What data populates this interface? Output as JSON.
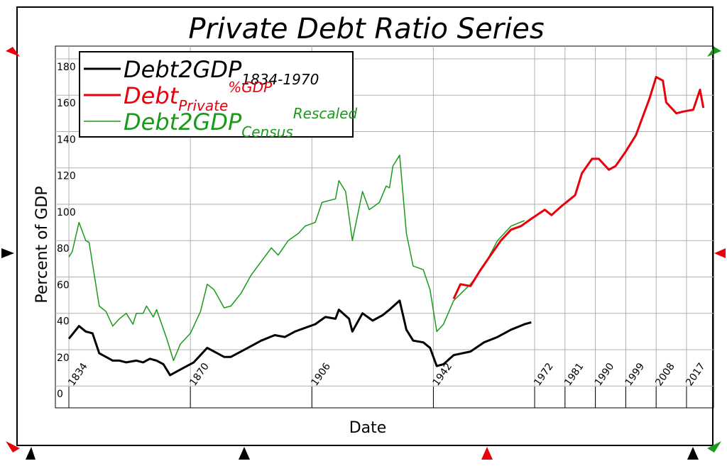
{
  "chart_data": {
    "type": "line",
    "title": "Private Debt Ratio Series",
    "x_label": "Date",
    "y_label": "Percent of GDP",
    "xlim": [
      1830,
      2025
    ],
    "ylim": [
      -12,
      187
    ],
    "xticks": [
      1834,
      1870,
      1906,
      1942,
      1972,
      1981,
      1990,
      1999,
      2008,
      2017
    ],
    "yticks": [
      0,
      20,
      40,
      60,
      80,
      100,
      120,
      140,
      160,
      180
    ],
    "grid": true,
    "legend": "top-left",
    "series": [
      {
        "name": "Debt2GDP",
        "name_sub": "1834-1970",
        "color": "#000000",
        "width": 3,
        "x": [
          1834,
          1837,
          1839,
          1841,
          1843,
          1845,
          1847,
          1849,
          1851,
          1854,
          1856,
          1858,
          1860,
          1862,
          1864,
          1866,
          1868,
          1871,
          1875,
          1877,
          1880,
          1882,
          1885,
          1888,
          1891,
          1895,
          1898,
          1901,
          1904,
          1907,
          1910,
          1913,
          1914,
          1917,
          1918,
          1921,
          1924,
          1927,
          1929,
          1932,
          1934,
          1936,
          1939,
          1941,
          1943,
          1945,
          1948,
          1953,
          1957,
          1961,
          1965,
          1969,
          1971
        ],
        "values": [
          26,
          33,
          30,
          29,
          18,
          16,
          14,
          14,
          13,
          14,
          13,
          15,
          14,
          12,
          6,
          8,
          10,
          13,
          21,
          19,
          16,
          16,
          19,
          22,
          25,
          28,
          27,
          30,
          32,
          34,
          38,
          37,
          42,
          37,
          30,
          40,
          36,
          39,
          42,
          47,
          31,
          25,
          24,
          21,
          11,
          12,
          17,
          19,
          24,
          27,
          31,
          34,
          35
        ]
      },
      {
        "name": "Debt",
        "name_sub": "Private",
        "name_sup": "%GDP",
        "color": "#e8000b",
        "width": 3,
        "x": [
          1948,
          1950,
          1953,
          1956,
          1959,
          1962,
          1965,
          1968,
          1971,
          1975,
          1977,
          1980,
          1982,
          1984,
          1986,
          1989,
          1991,
          1994,
          1996,
          1999,
          2002,
          2004,
          2006,
          2008,
          2010,
          2011,
          2014,
          2016,
          2019,
          2021,
          2022
        ],
        "values": [
          48,
          56,
          55,
          64,
          72,
          80,
          86,
          88,
          92,
          97,
          94,
          99,
          102,
          105,
          117,
          125,
          125,
          119,
          121,
          129,
          138,
          148,
          158,
          170,
          168,
          156,
          150,
          151,
          152,
          163,
          153
        ]
      },
      {
        "name": "Debt2GDP",
        "name_sub": "Census",
        "name_sup": "Rescaled",
        "color": "#1a9a1a",
        "width": 1.5,
        "x": [
          1834,
          1835,
          1837,
          1839,
          1840,
          1843,
          1845,
          1847,
          1849,
          1851,
          1853,
          1854,
          1856,
          1857,
          1859,
          1860,
          1863,
          1865,
          1867,
          1870,
          1873,
          1875,
          1877,
          1880,
          1882,
          1885,
          1888,
          1890,
          1894,
          1896,
          1899,
          1902,
          1904,
          1907,
          1909,
          1913,
          1914,
          1916,
          1918,
          1921,
          1923,
          1926,
          1928,
          1929,
          1930,
          1932,
          1934,
          1936,
          1939,
          1941,
          1943,
          1945,
          1948,
          1953,
          1957,
          1961,
          1965,
          1969
        ],
        "values": [
          71,
          74,
          90,
          80,
          79,
          44,
          41,
          33,
          37,
          40,
          34,
          40,
          40,
          44,
          38,
          42,
          26,
          14,
          23,
          29,
          41,
          56,
          53,
          43,
          44,
          51,
          61,
          66,
          76,
          72,
          80,
          84,
          88,
          90,
          101,
          103,
          113,
          107,
          80,
          107,
          97,
          101,
          110,
          109,
          121,
          127,
          84,
          66,
          64,
          53,
          30,
          34,
          47,
          56,
          66,
          80,
          88,
          91
        ]
      }
    ]
  }
}
